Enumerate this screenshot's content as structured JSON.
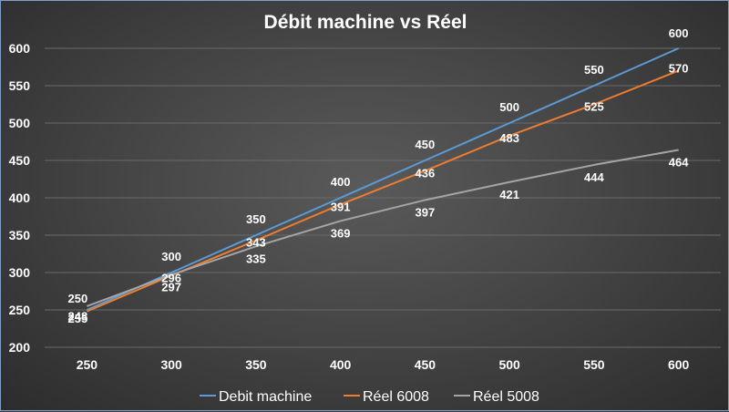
{
  "chart_data": {
    "type": "line",
    "title": "Débit machine vs Réel",
    "xlabel": "",
    "ylabel": "",
    "x": [
      250,
      300,
      350,
      400,
      450,
      500,
      550,
      600
    ],
    "ylim": [
      200,
      600
    ],
    "yticks": [
      200,
      250,
      300,
      350,
      400,
      450,
      500,
      550,
      600
    ],
    "grid": true,
    "legend_position": "bottom",
    "series": [
      {
        "name": "Debit machine",
        "color": "#5b9bd5",
        "values": [
          250,
          300,
          350,
          400,
          450,
          500,
          550,
          600
        ]
      },
      {
        "name": "Réel 6008",
        "color": "#ed7d31",
        "values": [
          248,
          296,
          343,
          391,
          436,
          483,
          525,
          570
        ]
      },
      {
        "name": "Réel 5008",
        "color": "#a5a5a5",
        "values": [
          255,
          297,
          335,
          369,
          397,
          421,
          444,
          464
        ]
      }
    ]
  }
}
